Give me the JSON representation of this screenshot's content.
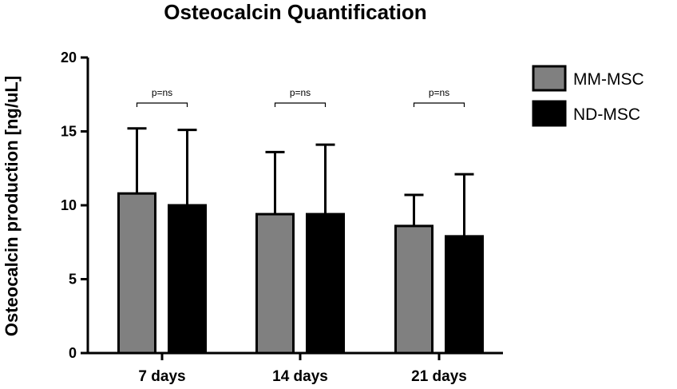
{
  "chart_data": {
    "type": "bar",
    "title": "Osteocalcin Quantification",
    "xlabel": "",
    "ylabel": "Osteocalcin production [ng/uL]",
    "ylim": [
      0,
      20
    ],
    "yticks": [
      0,
      5,
      10,
      15,
      20
    ],
    "categories": [
      "7 days",
      "14 days",
      "21 days"
    ],
    "series": [
      {
        "name": "MM-MSC",
        "color": "#808080",
        "values": [
          10.8,
          9.4,
          8.6
        ],
        "error": [
          4.4,
          4.2,
          2.1
        ]
      },
      {
        "name": "ND-MSC",
        "color": "#000000",
        "values": [
          10.0,
          9.4,
          7.9
        ],
        "error": [
          5.1,
          4.7,
          4.2
        ]
      }
    ],
    "annotations": [
      "p=ns",
      "p=ns",
      "p=ns"
    ],
    "legend_position": "top-right",
    "grid": false
  }
}
